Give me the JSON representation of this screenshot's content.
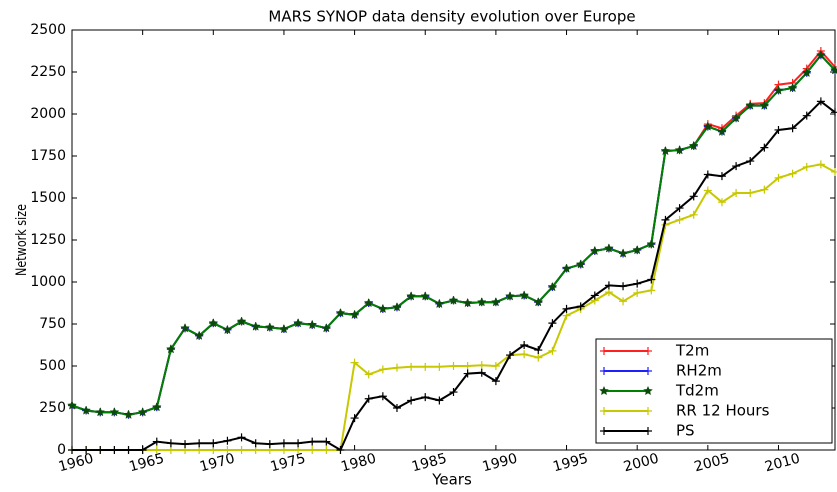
{
  "chart_data": {
    "type": "line",
    "title": "MARS SYNOP data density evolution over Europe",
    "x_label": "Years",
    "y_label": "Network size",
    "x": [
      1960,
      1961,
      1962,
      1963,
      1964,
      1965,
      1966,
      1967,
      1968,
      1969,
      1970,
      1971,
      1972,
      1973,
      1974,
      1975,
      1976,
      1977,
      1978,
      1979,
      1980,
      1981,
      1982,
      1983,
      1984,
      1985,
      1986,
      1987,
      1988,
      1989,
      1990,
      1991,
      1992,
      1993,
      1994,
      1995,
      1996,
      1997,
      1998,
      1999,
      2000,
      2001,
      2002,
      2003,
      2004,
      2005,
      2006,
      2007,
      2008,
      2009,
      2010,
      2011,
      2012,
      2013,
      2014
    ],
    "xlim": [
      1960,
      2014
    ],
    "xticks": [
      1960,
      1965,
      1970,
      1975,
      1980,
      1985,
      1990,
      1995,
      2000,
      2005,
      2010
    ],
    "ylim": [
      0,
      2500
    ],
    "yticks": [
      0,
      250,
      500,
      750,
      1000,
      1250,
      1500,
      1750,
      2000,
      2250,
      2500
    ],
    "legend": "lower right",
    "series": [
      {
        "name": "T2m",
        "color": "#ff2020",
        "marker": "plus",
        "values": [
          265,
          235,
          225,
          225,
          210,
          225,
          255,
          600,
          725,
          680,
          755,
          715,
          765,
          735,
          730,
          720,
          755,
          745,
          725,
          815,
          805,
          875,
          840,
          850,
          915,
          915,
          870,
          890,
          875,
          880,
          880,
          915,
          920,
          880,
          970,
          1080,
          1105,
          1185,
          1200,
          1170,
          1190,
          1225,
          1780,
          1785,
          1810,
          1940,
          1915,
          1990,
          2060,
          2065,
          2175,
          2185,
          2270,
          2375,
          2280
        ]
      },
      {
        "name": "RH2m",
        "color": "#2020ff",
        "marker": "plus",
        "values": [
          265,
          235,
          225,
          225,
          210,
          225,
          255,
          600,
          725,
          680,
          755,
          715,
          765,
          735,
          730,
          720,
          755,
          745,
          725,
          815,
          805,
          875,
          840,
          850,
          915,
          915,
          870,
          890,
          875,
          880,
          880,
          915,
          920,
          880,
          970,
          1080,
          1105,
          1185,
          1200,
          1170,
          1190,
          1225,
          1780,
          1785,
          1810,
          1925,
          1895,
          1975,
          2050,
          2050,
          2140,
          2155,
          2245,
          2350,
          2260
        ]
      },
      {
        "name": "Td2m",
        "color": "#008000",
        "marker": "star",
        "values": [
          265,
          235,
          225,
          225,
          210,
          225,
          255,
          600,
          725,
          680,
          755,
          715,
          765,
          735,
          730,
          720,
          755,
          745,
          725,
          815,
          805,
          875,
          840,
          850,
          915,
          915,
          870,
          890,
          875,
          880,
          880,
          915,
          920,
          880,
          970,
          1080,
          1105,
          1185,
          1200,
          1170,
          1190,
          1225,
          1780,
          1785,
          1810,
          1925,
          1895,
          1975,
          2050,
          2050,
          2140,
          2155,
          2245,
          2350,
          2260
        ]
      },
      {
        "name": "RR 12 Hours",
        "color": "#c8c800",
        "marker": "plus",
        "values": [
          0,
          0,
          0,
          0,
          0,
          0,
          0,
          0,
          0,
          0,
          0,
          0,
          0,
          0,
          0,
          0,
          0,
          0,
          0,
          0,
          520,
          450,
          480,
          490,
          495,
          495,
          495,
          500,
          500,
          505,
          500,
          565,
          570,
          550,
          590,
          800,
          840,
          890,
          940,
          885,
          935,
          950,
          1340,
          1370,
          1400,
          1545,
          1475,
          1530,
          1530,
          1550,
          1620,
          1645,
          1685,
          1700,
          1655
        ]
      },
      {
        "name": "PS",
        "color": "#000000",
        "marker": "plus",
        "values": [
          0,
          0,
          0,
          0,
          0,
          0,
          50,
          40,
          35,
          40,
          40,
          55,
          75,
          40,
          35,
          40,
          40,
          50,
          50,
          0,
          190,
          305,
          320,
          250,
          295,
          315,
          295,
          345,
          455,
          460,
          410,
          565,
          625,
          595,
          755,
          840,
          855,
          920,
          980,
          975,
          990,
          1015,
          1370,
          1440,
          1510,
          1640,
          1630,
          1690,
          1720,
          1800,
          1905,
          1915,
          1990,
          2075,
          2010
        ]
      }
    ]
  }
}
